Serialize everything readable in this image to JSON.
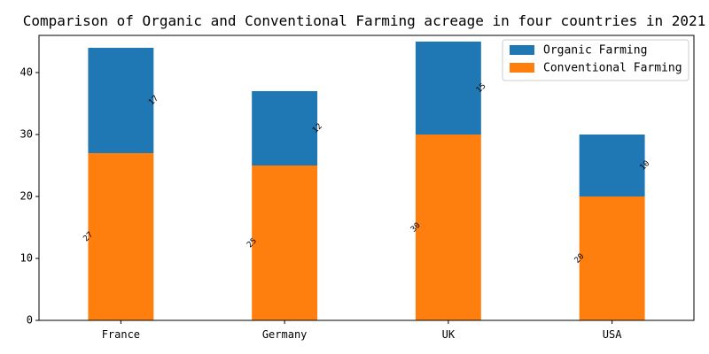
{
  "chart_data": {
    "type": "bar",
    "stacked": true,
    "title": "Comparison of Organic and Conventional Farming acreage in four countries in 2021",
    "xlabel": "",
    "ylabel": "",
    "categories": [
      "France",
      "Germany",
      "UK",
      "USA"
    ],
    "series": [
      {
        "name": "Conventional Farming",
        "color": "#ff7f0e",
        "values": [
          27,
          25,
          30,
          20
        ]
      },
      {
        "name": "Organic Farming",
        "color": "#1f77b4",
        "values": [
          17,
          12,
          15,
          10
        ]
      }
    ],
    "data_labels": {
      "Conventional Farming": [
        "27",
        "25",
        "30",
        "20"
      ],
      "Organic Farming": [
        "17",
        "12",
        "15",
        "10"
      ]
    },
    "ylim": [
      0,
      46
    ],
    "yticks": [
      0,
      10,
      20,
      30,
      40
    ],
    "grid": false,
    "legend": {
      "position": "top-right",
      "entries": [
        "Organic Farming",
        "Conventional Farming"
      ]
    }
  }
}
